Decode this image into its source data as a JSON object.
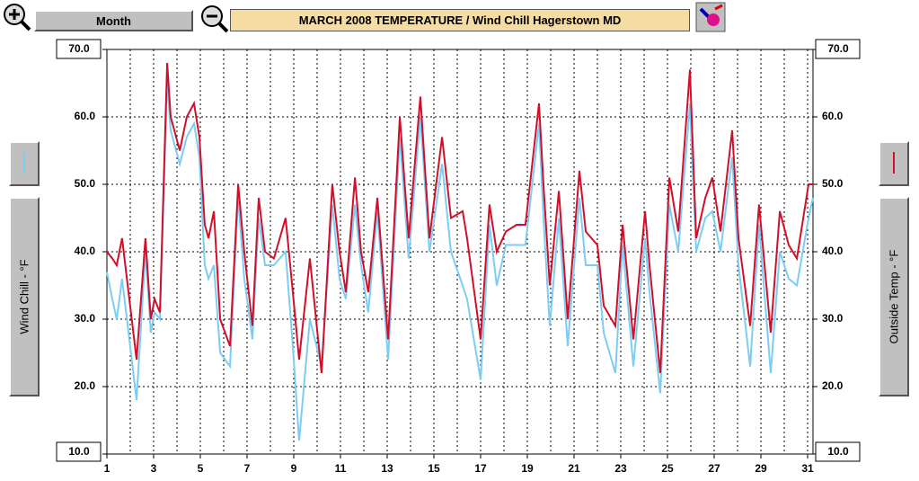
{
  "toolbar": {
    "view": "Month"
  },
  "chart_data": {
    "type": "line",
    "title": "MARCH 2008   TEMPERATURE / Wind Chill Hagerstown MD",
    "ylabel": "Wind Chill - °F",
    "y2label": "Outside Temp - °F",
    "x": [
      1.0,
      1.23,
      1.42,
      1.65,
      2.27,
      2.65,
      2.88,
      3.04,
      3.27,
      3.58,
      3.73,
      4.12,
      4.42,
      4.73,
      4.96,
      5.19,
      5.35,
      5.58,
      5.85,
      6.27,
      6.62,
      6.88,
      7.23,
      7.5,
      7.77,
      8.15,
      8.65,
      8.96,
      9.23,
      9.69,
      10.19,
      10.65,
      10.96,
      11.23,
      11.62,
      11.88,
      12.19,
      12.58,
      13.04,
      13.54,
      13.92,
      14.42,
      14.81,
      15.35,
      15.73,
      16.23,
      16.42,
      17.0,
      17.38,
      17.69,
      18.08,
      18.54,
      18.92,
      19.5,
      19.69,
      19.96,
      20.35,
      20.73,
      21.23,
      21.5,
      22.0,
      22.27,
      22.77,
      23.08,
      23.54,
      24.04,
      24.23,
      24.69,
      25.08,
      25.46,
      25.96,
      26.23,
      26.62,
      26.92,
      27.27,
      27.77,
      28.04,
      28.54,
      28.92,
      29.42,
      29.81,
      30.19,
      30.54,
      31.04,
      31.23
    ],
    "series": [
      {
        "color": "#7ccdf4",
        "axis": "y",
        "values": [
          37,
          33,
          30,
          36,
          18,
          40,
          28,
          31,
          30,
          65,
          58,
          53,
          57,
          59,
          54,
          38,
          36,
          38,
          25,
          23,
          48,
          36,
          27,
          45,
          38,
          38,
          40,
          26,
          12,
          30,
          23,
          47,
          36,
          33,
          47,
          38,
          31,
          46,
          24,
          57,
          39,
          60,
          40,
          53,
          40,
          35,
          33,
          21,
          44,
          35,
          41,
          41,
          41,
          59,
          45,
          29,
          45,
          26,
          48,
          38,
          38,
          28,
          22,
          41,
          23,
          42,
          34,
          19,
          47,
          40,
          62,
          40,
          45,
          46,
          40,
          54,
          38,
          23,
          44,
          22,
          40,
          36,
          35,
          45,
          48
        ]
      },
      {
        "color": "#d0102a",
        "axis": "y2",
        "values": [
          40,
          39,
          38,
          42,
          24,
          42,
          30,
          33,
          31,
          68,
          60,
          55,
          60,
          62,
          57,
          44,
          42,
          46,
          30,
          26,
          50,
          40,
          29,
          48,
          40,
          39,
          45,
          34,
          24,
          39,
          22,
          50,
          40,
          34,
          51,
          40,
          34,
          48,
          27,
          60,
          42,
          63,
          42,
          57,
          45,
          46,
          42,
          27,
          47,
          40,
          43,
          44,
          44,
          62,
          50,
          35,
          49,
          30,
          52,
          43,
          41,
          32,
          29,
          44,
          27,
          46,
          38,
          22,
          51,
          43,
          67,
          42,
          48,
          51,
          43,
          58,
          42,
          29,
          47,
          28,
          46,
          41,
          39,
          50,
          50
        ]
      }
    ],
    "xlim": [
      1,
      31.23
    ],
    "xticks": [
      1,
      3,
      5,
      7,
      9,
      11,
      13,
      15,
      17,
      19,
      21,
      23,
      25,
      27,
      29,
      31
    ],
    "xgrid": [
      2,
      3,
      4,
      5,
      6,
      7,
      8,
      9,
      10,
      11,
      12,
      13,
      14,
      15,
      16,
      17,
      18,
      19,
      20,
      21,
      22,
      23,
      24,
      25,
      26,
      27,
      28,
      29,
      30,
      31
    ],
    "ylim": [
      10,
      70
    ],
    "yticks": [
      {
        "value": 10,
        "label": "10.0"
      },
      {
        "value": 20,
        "label": "20.0"
      },
      {
        "value": 30,
        "label": "30.0"
      },
      {
        "value": 40,
        "label": "40.0"
      },
      {
        "value": 50,
        "label": "50.0"
      },
      {
        "value": 60,
        "label": "60.0"
      },
      {
        "value": 70,
        "label": "70.0"
      }
    ],
    "y2lim": [
      10,
      70
    ],
    "y2ticks": [
      {
        "value": 10,
        "label": "10.0"
      },
      {
        "value": 20,
        "label": "20.0"
      },
      {
        "value": 30,
        "label": "30.0"
      },
      {
        "value": 40,
        "label": "40.0"
      },
      {
        "value": 50,
        "label": "50.0"
      },
      {
        "value": 60,
        "label": "60.0"
      },
      {
        "value": 70,
        "label": "70.0"
      }
    ],
    "grid": true
  }
}
